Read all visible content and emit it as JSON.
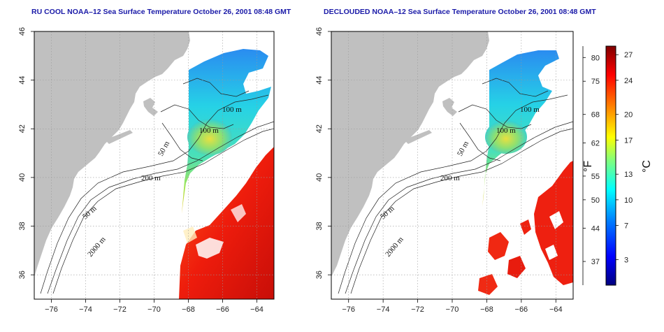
{
  "panels": [
    {
      "id": "left",
      "title": "RU COOL NOAA–12 Sea Surface Temperature October 26, 2001 08:48 GMT"
    },
    {
      "id": "right",
      "title": "DECLOUDED NOAA–12 Sea Surface Temperature October 26, 2001 08:48 GMT"
    }
  ],
  "axes": {
    "lon_ticks": [
      "−76",
      "−74",
      "−72",
      "−70",
      "−68",
      "−66",
      "−64"
    ],
    "lat_ticks": [
      "36",
      "38",
      "40",
      "42",
      "44",
      "46"
    ],
    "lon_range": [
      -77,
      -63
    ],
    "lat_range": [
      35,
      46
    ],
    "grid": "dotted"
  },
  "contour_labels": [
    "100 m",
    "100 m",
    "50 m",
    "200 m",
    "50 m",
    "2000 m"
  ],
  "colorbar": {
    "fahrenheit_unit": "°F",
    "celsius_unit": "°C",
    "fahrenheit_ticks": [
      "80",
      "75",
      "68",
      "62",
      "55",
      "50",
      "44",
      "37"
    ],
    "celsius_ticks": [
      "27",
      "24",
      "20",
      "17",
      "13",
      "10",
      "7",
      "3"
    ],
    "fahrenheit_values": [
      80,
      75,
      68,
      62,
      55,
      50,
      44,
      37
    ],
    "celsius_values": [
      27,
      24,
      20,
      17,
      13,
      10,
      7,
      3
    ],
    "celsius_range": [
      0,
      28
    ],
    "colors": [
      "#00007f",
      "#0000ff",
      "#007fff",
      "#00ffff",
      "#7fff7f",
      "#ffff00",
      "#ff7f00",
      "#ff0000",
      "#7f0000"
    ]
  },
  "colors": {
    "land": "#c0c0c0",
    "title": "#1a1aa8",
    "warm_water": "#ee2a10",
    "cool_water": "#22c6e6"
  }
}
